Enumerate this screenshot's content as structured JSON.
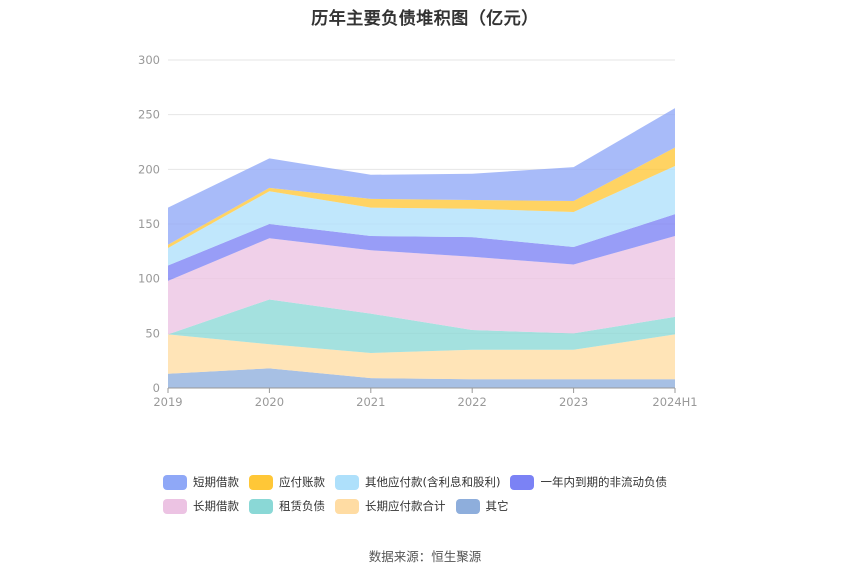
{
  "title": "历年主要负债堆积图（亿元）",
  "source": "数据来源：恒生聚源",
  "chart_data": {
    "type": "area",
    "stacked": true,
    "categories": [
      "2019",
      "2020",
      "2021",
      "2022",
      "2023",
      "2024H1"
    ],
    "ylim": [
      0,
      300
    ],
    "yticks": [
      0,
      50,
      100,
      150,
      200,
      250,
      300
    ],
    "grid": true,
    "legend_position": "bottom",
    "series": [
      {
        "name": "其它",
        "color": "#8eaedc",
        "values": [
          13,
          18,
          9,
          8,
          8,
          8
        ]
      },
      {
        "name": "长期应付款合计",
        "color": "#ffdca3",
        "values": [
          36,
          22,
          23,
          27,
          27,
          41
        ]
      },
      {
        "name": "租赁负债",
        "color": "#8ad8d6",
        "values": [
          0,
          41,
          36,
          18,
          15,
          16
        ]
      },
      {
        "name": "长期借款",
        "color": "#ecc3e3",
        "values": [
          49,
          56,
          58,
          67,
          63,
          74
        ]
      },
      {
        "name": "一年内到期的非流动负债",
        "color": "#7b82f5",
        "values": [
          14,
          13,
          13,
          18,
          16,
          20
        ]
      },
      {
        "name": "其他应付款(含利息和股利)",
        "color": "#aee0fb",
        "values": [
          16,
          30,
          26,
          26,
          32,
          44
        ]
      },
      {
        "name": "应付账款",
        "color": "#ffc737",
        "values": [
          3,
          3,
          8,
          8,
          10,
          17
        ]
      },
      {
        "name": "短期借款",
        "color": "#8fa8f7",
        "values": [
          34,
          27,
          22,
          24,
          31,
          36
        ]
      }
    ]
  },
  "legend": {
    "rows": [
      [
        "短期借款",
        "应付账款",
        "其他应付款(含利息和股利)",
        "一年内到期的非流动负债"
      ],
      [
        "长期借款",
        "租赁负债",
        "长期应付款合计",
        "其它"
      ]
    ]
  }
}
